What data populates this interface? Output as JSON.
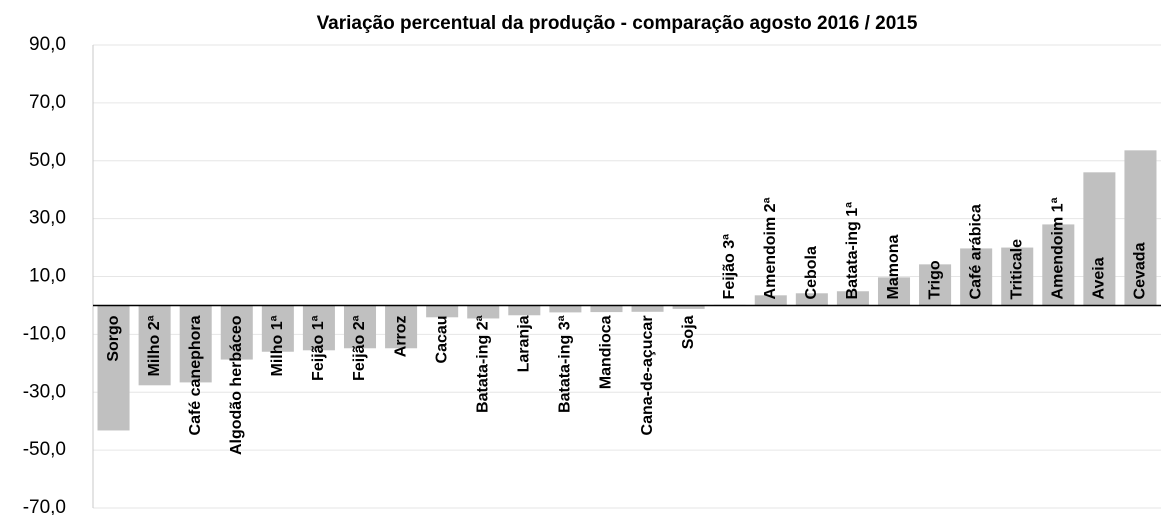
{
  "chart_data": {
    "type": "bar",
    "title": "Variação percentual da produção - comparação agosto 2016 / 2015",
    "categories": [
      "Sorgo",
      "Milho 2ª",
      "Café canephora",
      "Algodão herbáceo",
      "Milho 1ª",
      "Feijão 1ª",
      "Feijão 2ª",
      "Arroz",
      "Cacau",
      "Batata-ing 2ª",
      "Laranja",
      "Batata-ing 3ª",
      "Mandioca",
      "Cana-de-açucar",
      "Soja",
      "Feijão 3ª",
      "Amendoim 2ª",
      "Cebola",
      "Batata-ing 1ª",
      "Mamona",
      "Trigo",
      "Café arábica",
      "Triticale",
      "Amendoim 1ª",
      "Aveia",
      "Cevada"
    ],
    "values": [
      -43.2,
      -27.6,
      -26.6,
      -18.7,
      -16.0,
      -15.5,
      -14.8,
      -14.8,
      -4.1,
      -4.5,
      -3.4,
      -2.4,
      -2.3,
      -2.2,
      -1.2,
      0.2,
      3.5,
      4.2,
      4.9,
      9.7,
      14.2,
      19.7,
      20.0,
      28.0,
      46.0,
      53.6
    ],
    "color": "#c0c0c0",
    "ylim": [
      -70,
      90
    ],
    "yticks": [
      {
        "value": -70,
        "label": "-70,0"
      },
      {
        "value": -50,
        "label": "-50,0"
      },
      {
        "value": -30,
        "label": "-30,0"
      },
      {
        "value": -10,
        "label": "-10,0"
      },
      {
        "value": 10,
        "label": "10,0"
      },
      {
        "value": 30,
        "label": "30,0"
      },
      {
        "value": 50,
        "label": "50,0"
      },
      {
        "value": 70,
        "label": "70,0"
      },
      {
        "value": 90,
        "label": "90,0"
      }
    ],
    "grid": true
  }
}
